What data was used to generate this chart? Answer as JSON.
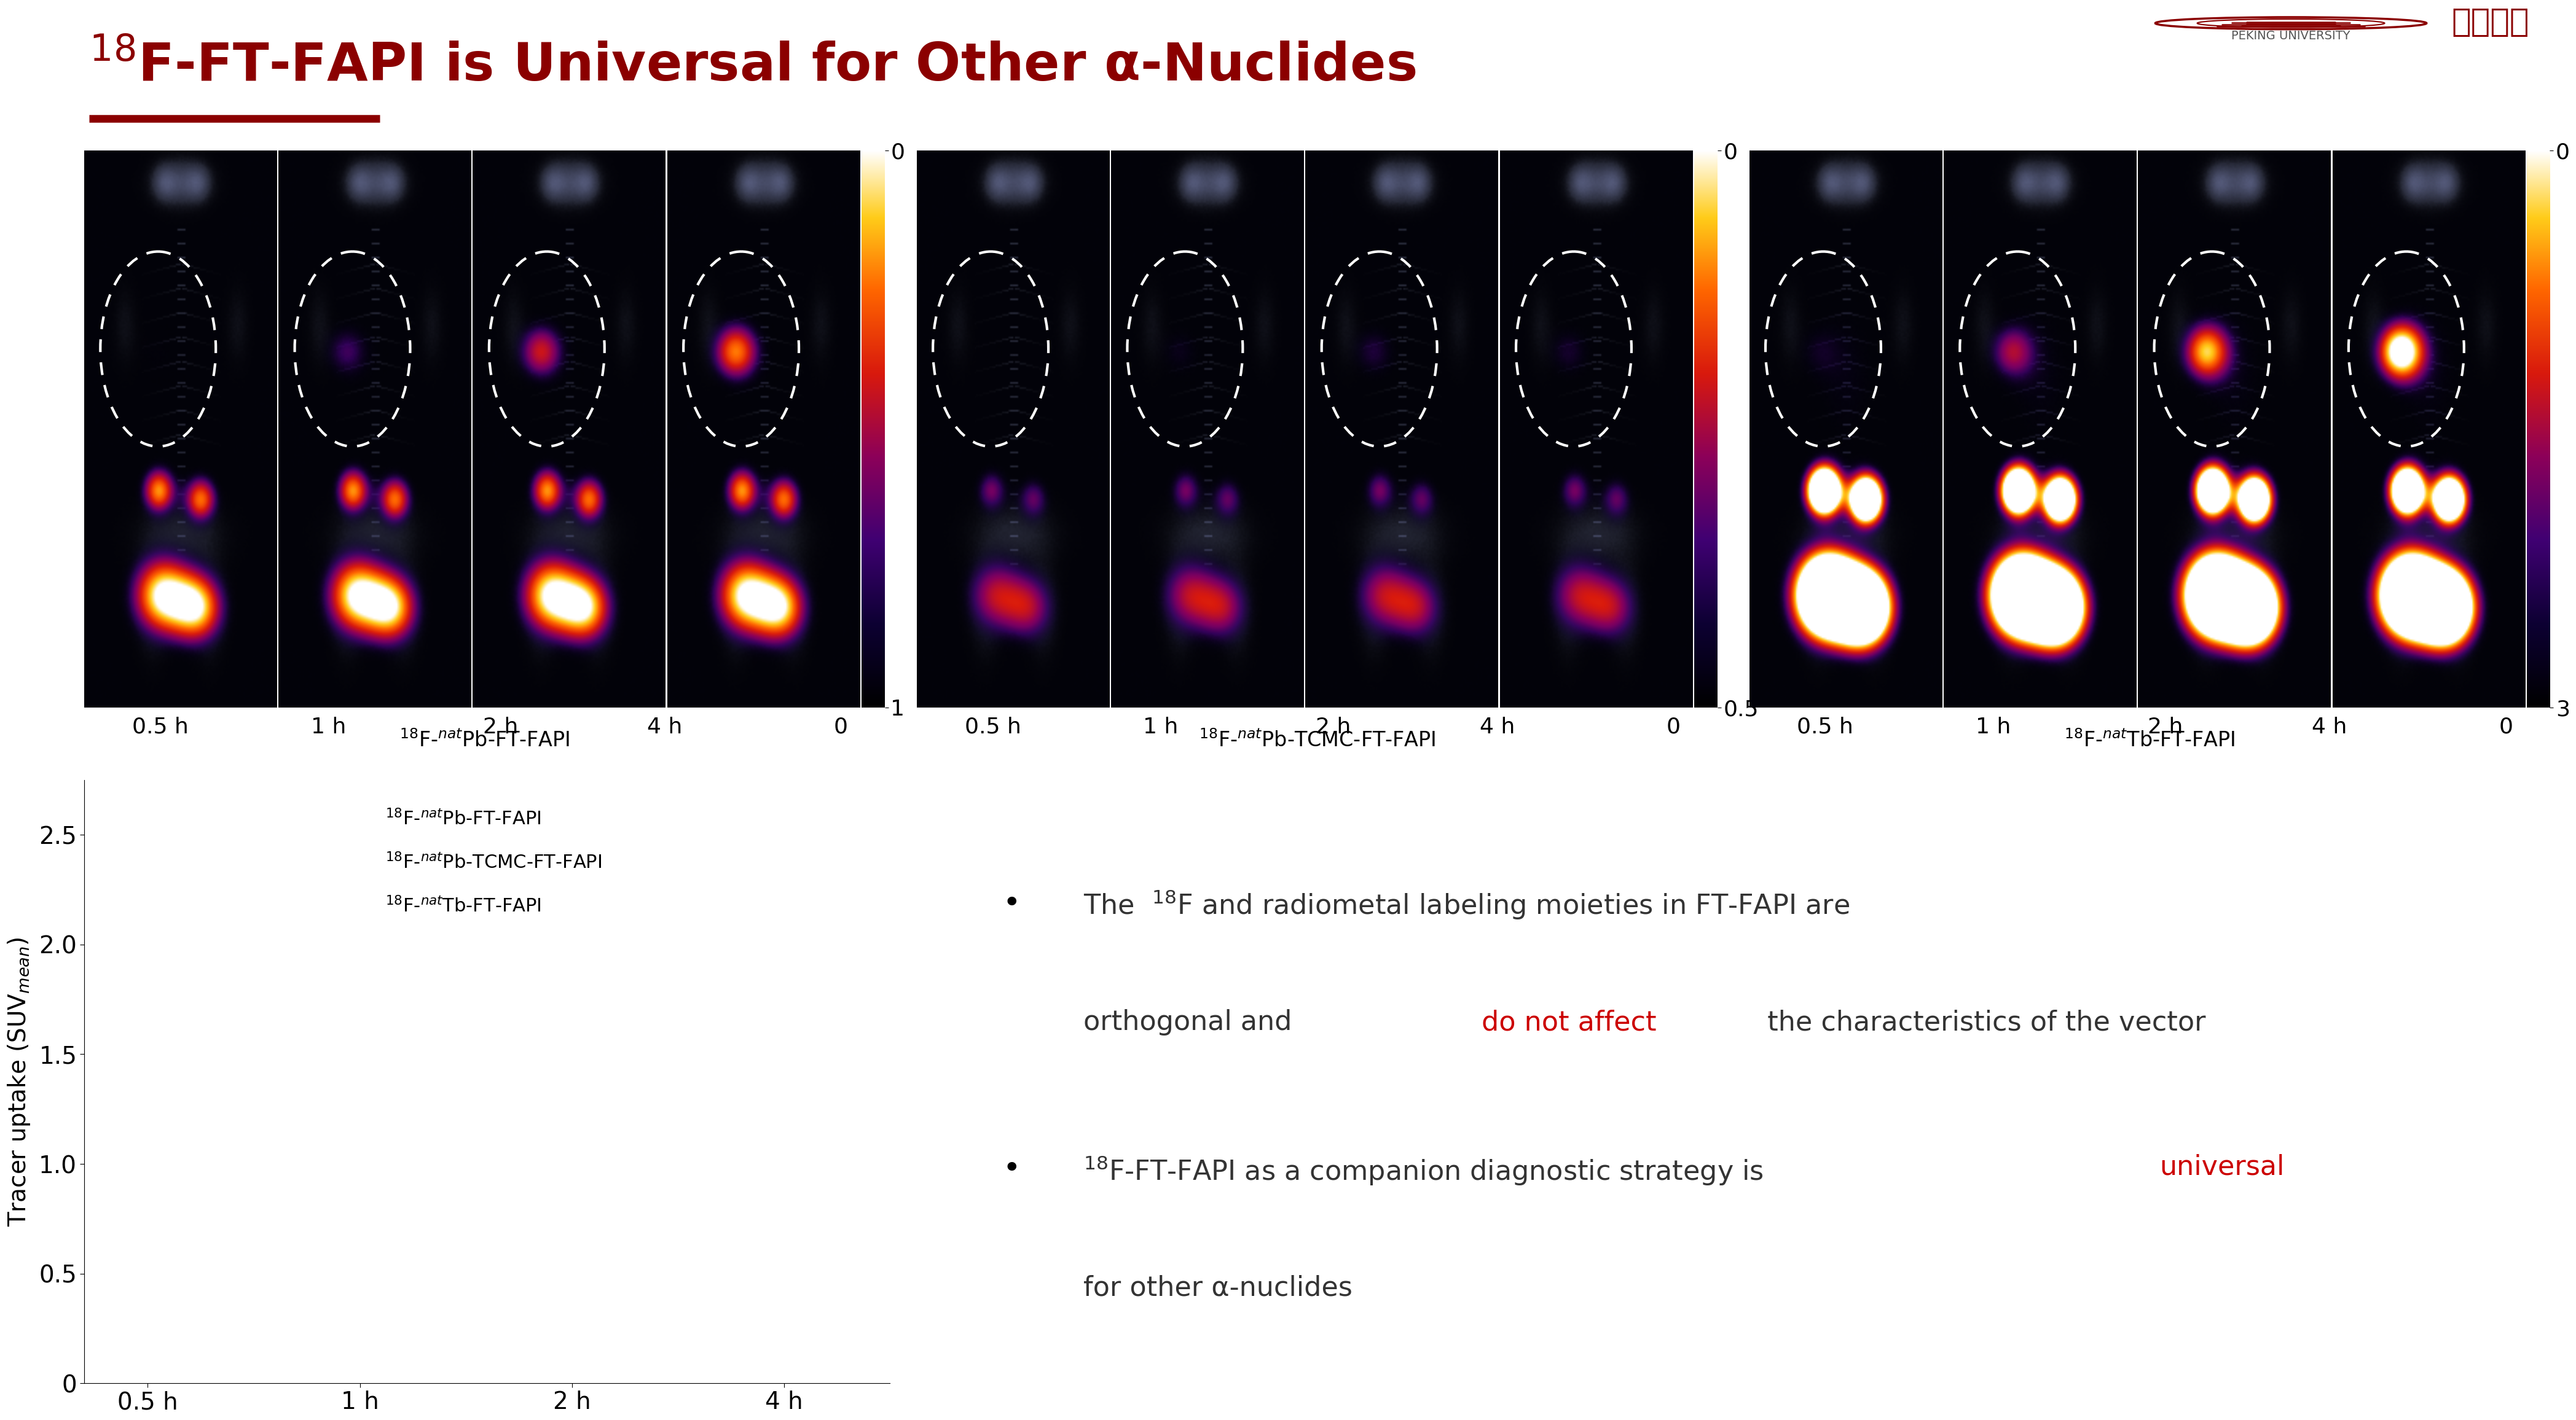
{
  "title_color": "#8B0000",
  "underline_color": "#8B0000",
  "bg_color": "#ffffff",
  "groups": [
    {
      "cbar_max": "1",
      "compound": [
        "$^{18}$F-$^{nat}$Pb-FT-FAPI"
      ]
    },
    {
      "cbar_max": "0.5",
      "compound": [
        "$^{18}$F-$^{nat}$Pb-TCMC-FT-FAPI"
      ]
    },
    {
      "cbar_max": "3",
      "compound": [
        "$^{18}$F-$^{nat}$Tb-FT-FAPI"
      ]
    }
  ],
  "time_labels": [
    "0.5 h",
    "1 h",
    "2 h",
    "4 h"
  ],
  "plot_yticks": [
    0,
    0.5,
    1.0,
    1.5,
    2.0,
    2.5
  ],
  "plot_xticks": [
    "0.5 h",
    "1 h",
    "2 h",
    "4 h"
  ],
  "legend_entries": [
    "$^{18}$F-$^{nat}$Pb-FT-FAPI",
    "$^{18}$F-$^{nat}$Pb-TCMC-FT-FAPI",
    "$^{18}$F-$^{nat}$Tb-FT-FAPI"
  ],
  "text_color": "#333333",
  "red_color": "#cc0000",
  "line_color_1": "#1f77b4",
  "line_color_2": "#ff7f0e",
  "line_color_3": "#2ca02c"
}
